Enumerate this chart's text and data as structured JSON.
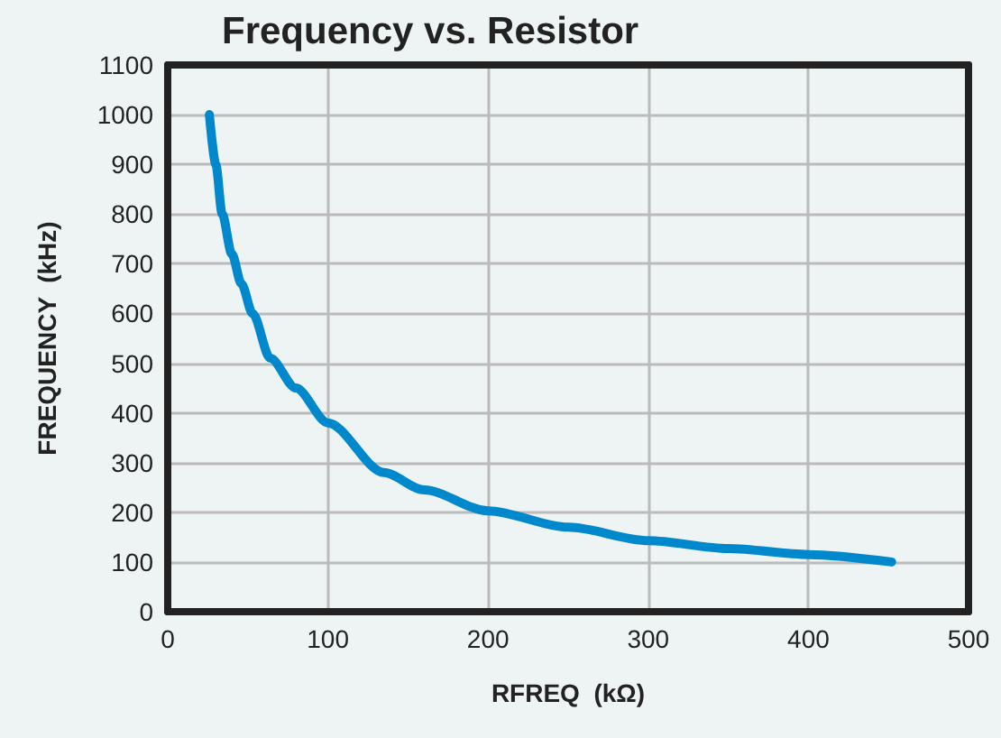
{
  "chart_data": {
    "type": "line",
    "title": "Frequency vs. Resistor",
    "xlabel": "RFREQ  (kΩ)",
    "ylabel": "FREQUENCY  (kHz)",
    "series": [
      {
        "color": "#0088cc",
        "x": [
          26,
          30,
          34,
          40,
          46,
          53,
          64,
          80,
          100,
          135,
          160,
          200,
          250,
          300,
          350,
          400,
          452
        ],
        "values": [
          1000,
          900,
          800,
          720,
          660,
          600,
          510,
          450,
          380,
          280,
          245,
          203,
          170,
          143,
          127,
          115,
          100
        ]
      }
    ],
    "xlim": [
      0,
      500
    ],
    "xticks": [
      0,
      100,
      200,
      300,
      400,
      500
    ],
    "ylim": [
      0,
      1100
    ],
    "yticks": [
      0,
      100,
      200,
      300,
      400,
      500,
      600,
      700,
      800,
      900,
      1000,
      1100
    ],
    "grid": true,
    "marker": "none",
    "line_style": "solid"
  }
}
